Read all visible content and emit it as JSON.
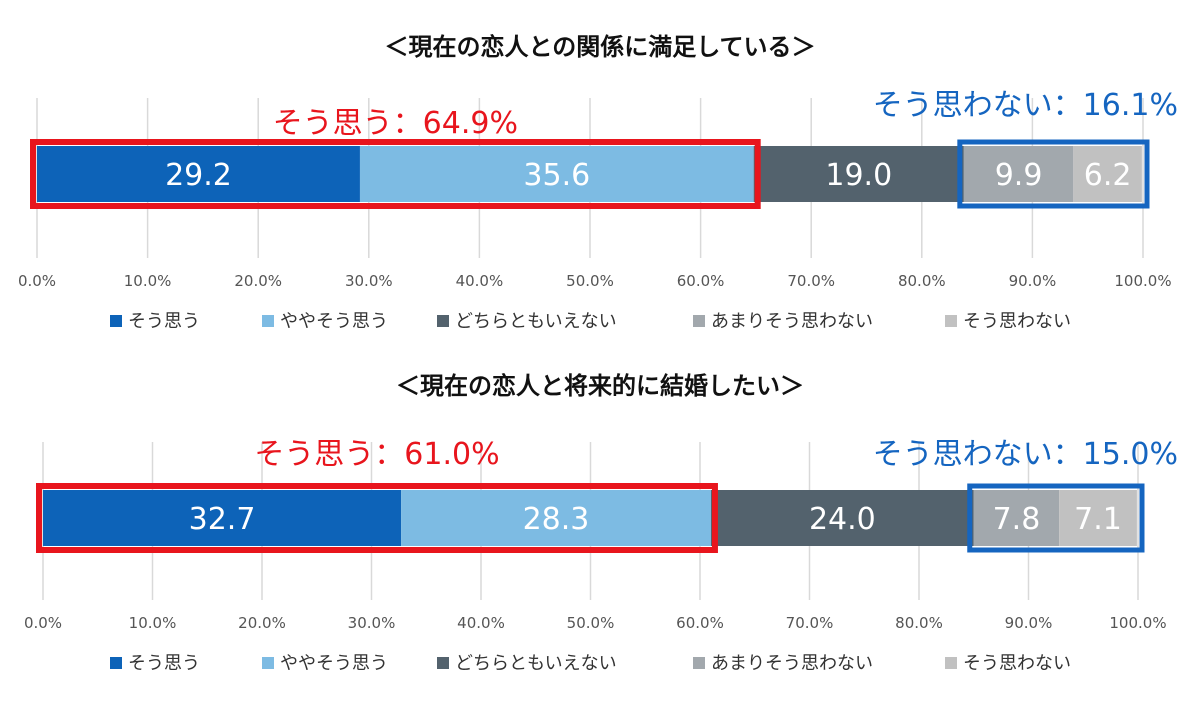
{
  "chart_data": [
    {
      "type": "bar",
      "orientation": "horizontal-stacked-100",
      "title": "＜現在の恋人との関係に満足している＞",
      "categories": [
        "そう思う",
        "ややそう思う",
        "どちらともいえない",
        "あまりそう思わない",
        "そう思わない"
      ],
      "values": [
        29.2,
        35.6,
        19.0,
        9.9,
        6.2
      ],
      "value_labels": [
        "29.2",
        "35.6",
        "19.0",
        "9.9",
        "6.2"
      ],
      "xlim": [
        0,
        100
      ],
      "xticks": [
        "0.0%",
        "10.0%",
        "20.0%",
        "30.0%",
        "40.0%",
        "50.0%",
        "60.0%",
        "70.0%",
        "80.0%",
        "90.0%",
        "100.0%"
      ],
      "grid": true,
      "legend": "bottom",
      "agree_callout": {
        "text": "そう思う：64.9%",
        "range": [
          0,
          64.8
        ]
      },
      "disagree_callout": {
        "text": "そう思わない：16.1%",
        "range": [
          83.8,
          100
        ]
      }
    },
    {
      "type": "bar",
      "orientation": "horizontal-stacked-100",
      "title": "＜現在の恋人と将来的に結婚したい＞",
      "categories": [
        "そう思う",
        "ややそう思う",
        "どちらともいえない",
        "あまりそう思わない",
        "そう思わない"
      ],
      "values": [
        32.7,
        28.3,
        24.0,
        7.8,
        7.1
      ],
      "value_labels": [
        "32.7",
        "28.3",
        "24.0",
        "7.8",
        "7.1"
      ],
      "xlim": [
        0,
        100
      ],
      "xticks": [
        "0.0%",
        "10.0%",
        "20.0%",
        "30.0%",
        "40.0%",
        "50.0%",
        "60.0%",
        "70.0%",
        "80.0%",
        "90.0%",
        "100.0%"
      ],
      "grid": true,
      "legend": "bottom",
      "agree_callout": {
        "text": "そう思う：61.0%",
        "range": [
          0,
          61.0
        ]
      },
      "disagree_callout": {
        "text": "そう思わない：15.0%",
        "range": [
          85.0,
          100
        ]
      }
    }
  ],
  "colors": {
    "series": [
      "#0d63b8",
      "#7dbbe3",
      "#53626d",
      "#a2a8ad",
      "#c1c1c1"
    ],
    "agree_box": "#e8151d",
    "disagree_box": "#1565c0",
    "grid": "#d9d9d9"
  }
}
